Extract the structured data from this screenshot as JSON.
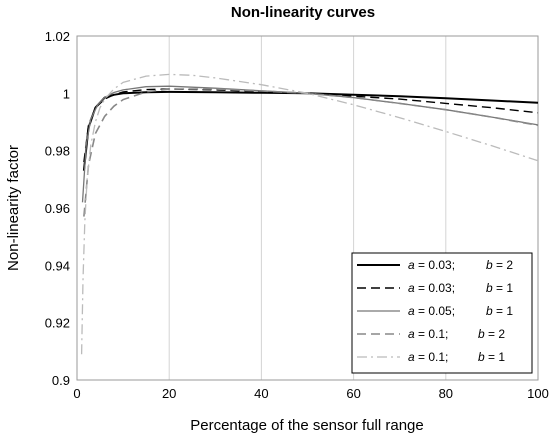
{
  "chart_data": {
    "type": "line",
    "title": "Non-linearity curves",
    "xlabel": "Percentage of the sensor full range",
    "ylabel": "Non-linearity factor",
    "xlim": [
      0,
      100
    ],
    "ylim": [
      0.9,
      1.02
    ],
    "x_ticks": [
      "0",
      "20",
      "40",
      "60",
      "80",
      "100"
    ],
    "y_ticks": [
      "0.9",
      "0.92",
      "0.94",
      "0.96",
      "0.98",
      "1",
      "1.02"
    ],
    "grid": "vertical",
    "legend_position": "bottom-right",
    "series": [
      {
        "label": "a = 0.03; b = 2",
        "a": "0.03",
        "b": "2",
        "color": "#000000",
        "style": "solid",
        "width": 2,
        "x": [
          1.5,
          2.5,
          4,
          6,
          8,
          10,
          15,
          20,
          30,
          40,
          50,
          60,
          70,
          80,
          90,
          100
        ],
        "y": [
          0.973,
          0.988,
          0.995,
          0.9985,
          0.9995,
          1.0,
          1.0004,
          1.0005,
          1.0004,
          1.0002,
          1.0,
          0.9995,
          0.999,
          0.9983,
          0.9975,
          0.9967
        ]
      },
      {
        "label": "a = 0.03; b = 1",
        "a": "0.03",
        "b": "1",
        "color": "#000000",
        "style": "dashed",
        "width": 1.4,
        "x": [
          1.5,
          2.5,
          4,
          6,
          8,
          10,
          15,
          20,
          30,
          40,
          50,
          60,
          70,
          80,
          90,
          100
        ],
        "y": [
          0.976,
          0.989,
          0.995,
          0.998,
          0.9995,
          1.0005,
          1.0013,
          1.0015,
          1.0012,
          1.0006,
          1.0,
          0.999,
          0.998,
          0.9965,
          0.995,
          0.9932
        ]
      },
      {
        "label": "a = 0.05; b = 1",
        "a": "0.05",
        "b": "1",
        "color": "#777777",
        "style": "solid",
        "width": 1.3,
        "x": [
          1.2,
          2,
          3,
          4.5,
          6,
          8,
          10,
          15,
          20,
          30,
          40,
          50,
          60,
          70,
          80,
          90,
          100
        ],
        "y": [
          0.962,
          0.982,
          0.991,
          0.996,
          0.9985,
          1.0003,
          1.0012,
          1.0023,
          1.0025,
          1.0018,
          1.0009,
          1.0,
          0.9985,
          0.9965,
          0.9943,
          0.9917,
          0.989
        ]
      },
      {
        "label": "a = 0.1; b = 2",
        "a": "0.1",
        "b": "2",
        "color": "#888888",
        "style": "dashed",
        "width": 1.6,
        "x": [
          1.5,
          2.5,
          4,
          6,
          8,
          10,
          15,
          20,
          30,
          40,
          50,
          60,
          70,
          80,
          90,
          100
        ],
        "y": [
          0.957,
          0.975,
          0.986,
          0.992,
          0.9955,
          0.9978,
          1.0005,
          1.0015,
          1.0015,
          1.0008,
          1.0,
          0.9985,
          0.9965,
          0.9943,
          0.9917,
          0.9888
        ]
      },
      {
        "label": "a = 0.1; b = 1",
        "a": "0.1",
        "b": "1",
        "color": "#bbbbbb",
        "style": "dashdot",
        "width": 1.3,
        "x": [
          1.0,
          1.3,
          1.7,
          2.2,
          3,
          4,
          5,
          6,
          8,
          10,
          15,
          20,
          25,
          30,
          40,
          50,
          60,
          70,
          80,
          90,
          100
        ],
        "y": [
          0.909,
          0.935,
          0.955,
          0.97,
          0.982,
          0.99,
          0.995,
          0.998,
          1.0015,
          1.0038,
          1.006,
          1.0066,
          1.0063,
          1.0054,
          1.003,
          1.0,
          0.996,
          0.9915,
          0.9867,
          0.9817,
          0.9765
        ]
      }
    ]
  }
}
